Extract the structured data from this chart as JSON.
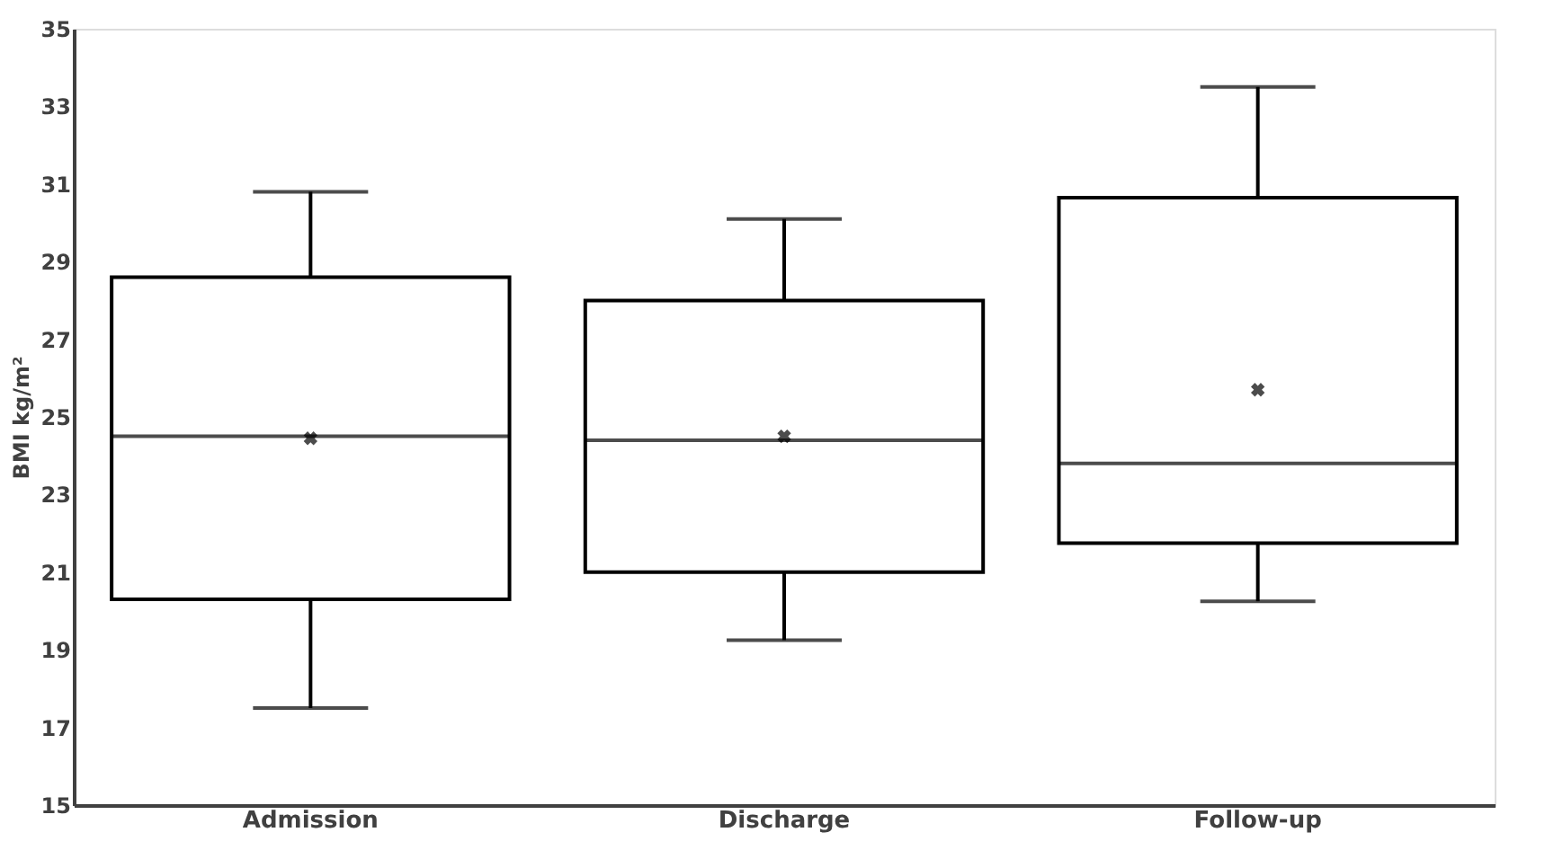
{
  "chart_data": {
    "type": "box",
    "ylabel": "BMI kg/m²",
    "categories": [
      "Admission",
      "Discharge",
      "Follow-up"
    ],
    "boxes": [
      {
        "low": 17.5,
        "q1": 20.3,
        "median": 24.5,
        "q3": 28.6,
        "high": 30.8,
        "mean": 24.45
      },
      {
        "low": 19.25,
        "q1": 21.0,
        "median": 24.4,
        "q3": 28.0,
        "high": 30.1,
        "mean": 24.5
      },
      {
        "low": 20.25,
        "q1": 21.75,
        "median": 23.8,
        "q3": 30.65,
        "high": 33.5,
        "mean": 25.7
      }
    ],
    "ylim": [
      15,
      35
    ],
    "yticks": [
      15,
      17,
      19,
      21,
      23,
      25,
      27,
      29,
      31,
      33,
      35
    ],
    "grid": false,
    "marker": "cross",
    "color": "#000000"
  }
}
